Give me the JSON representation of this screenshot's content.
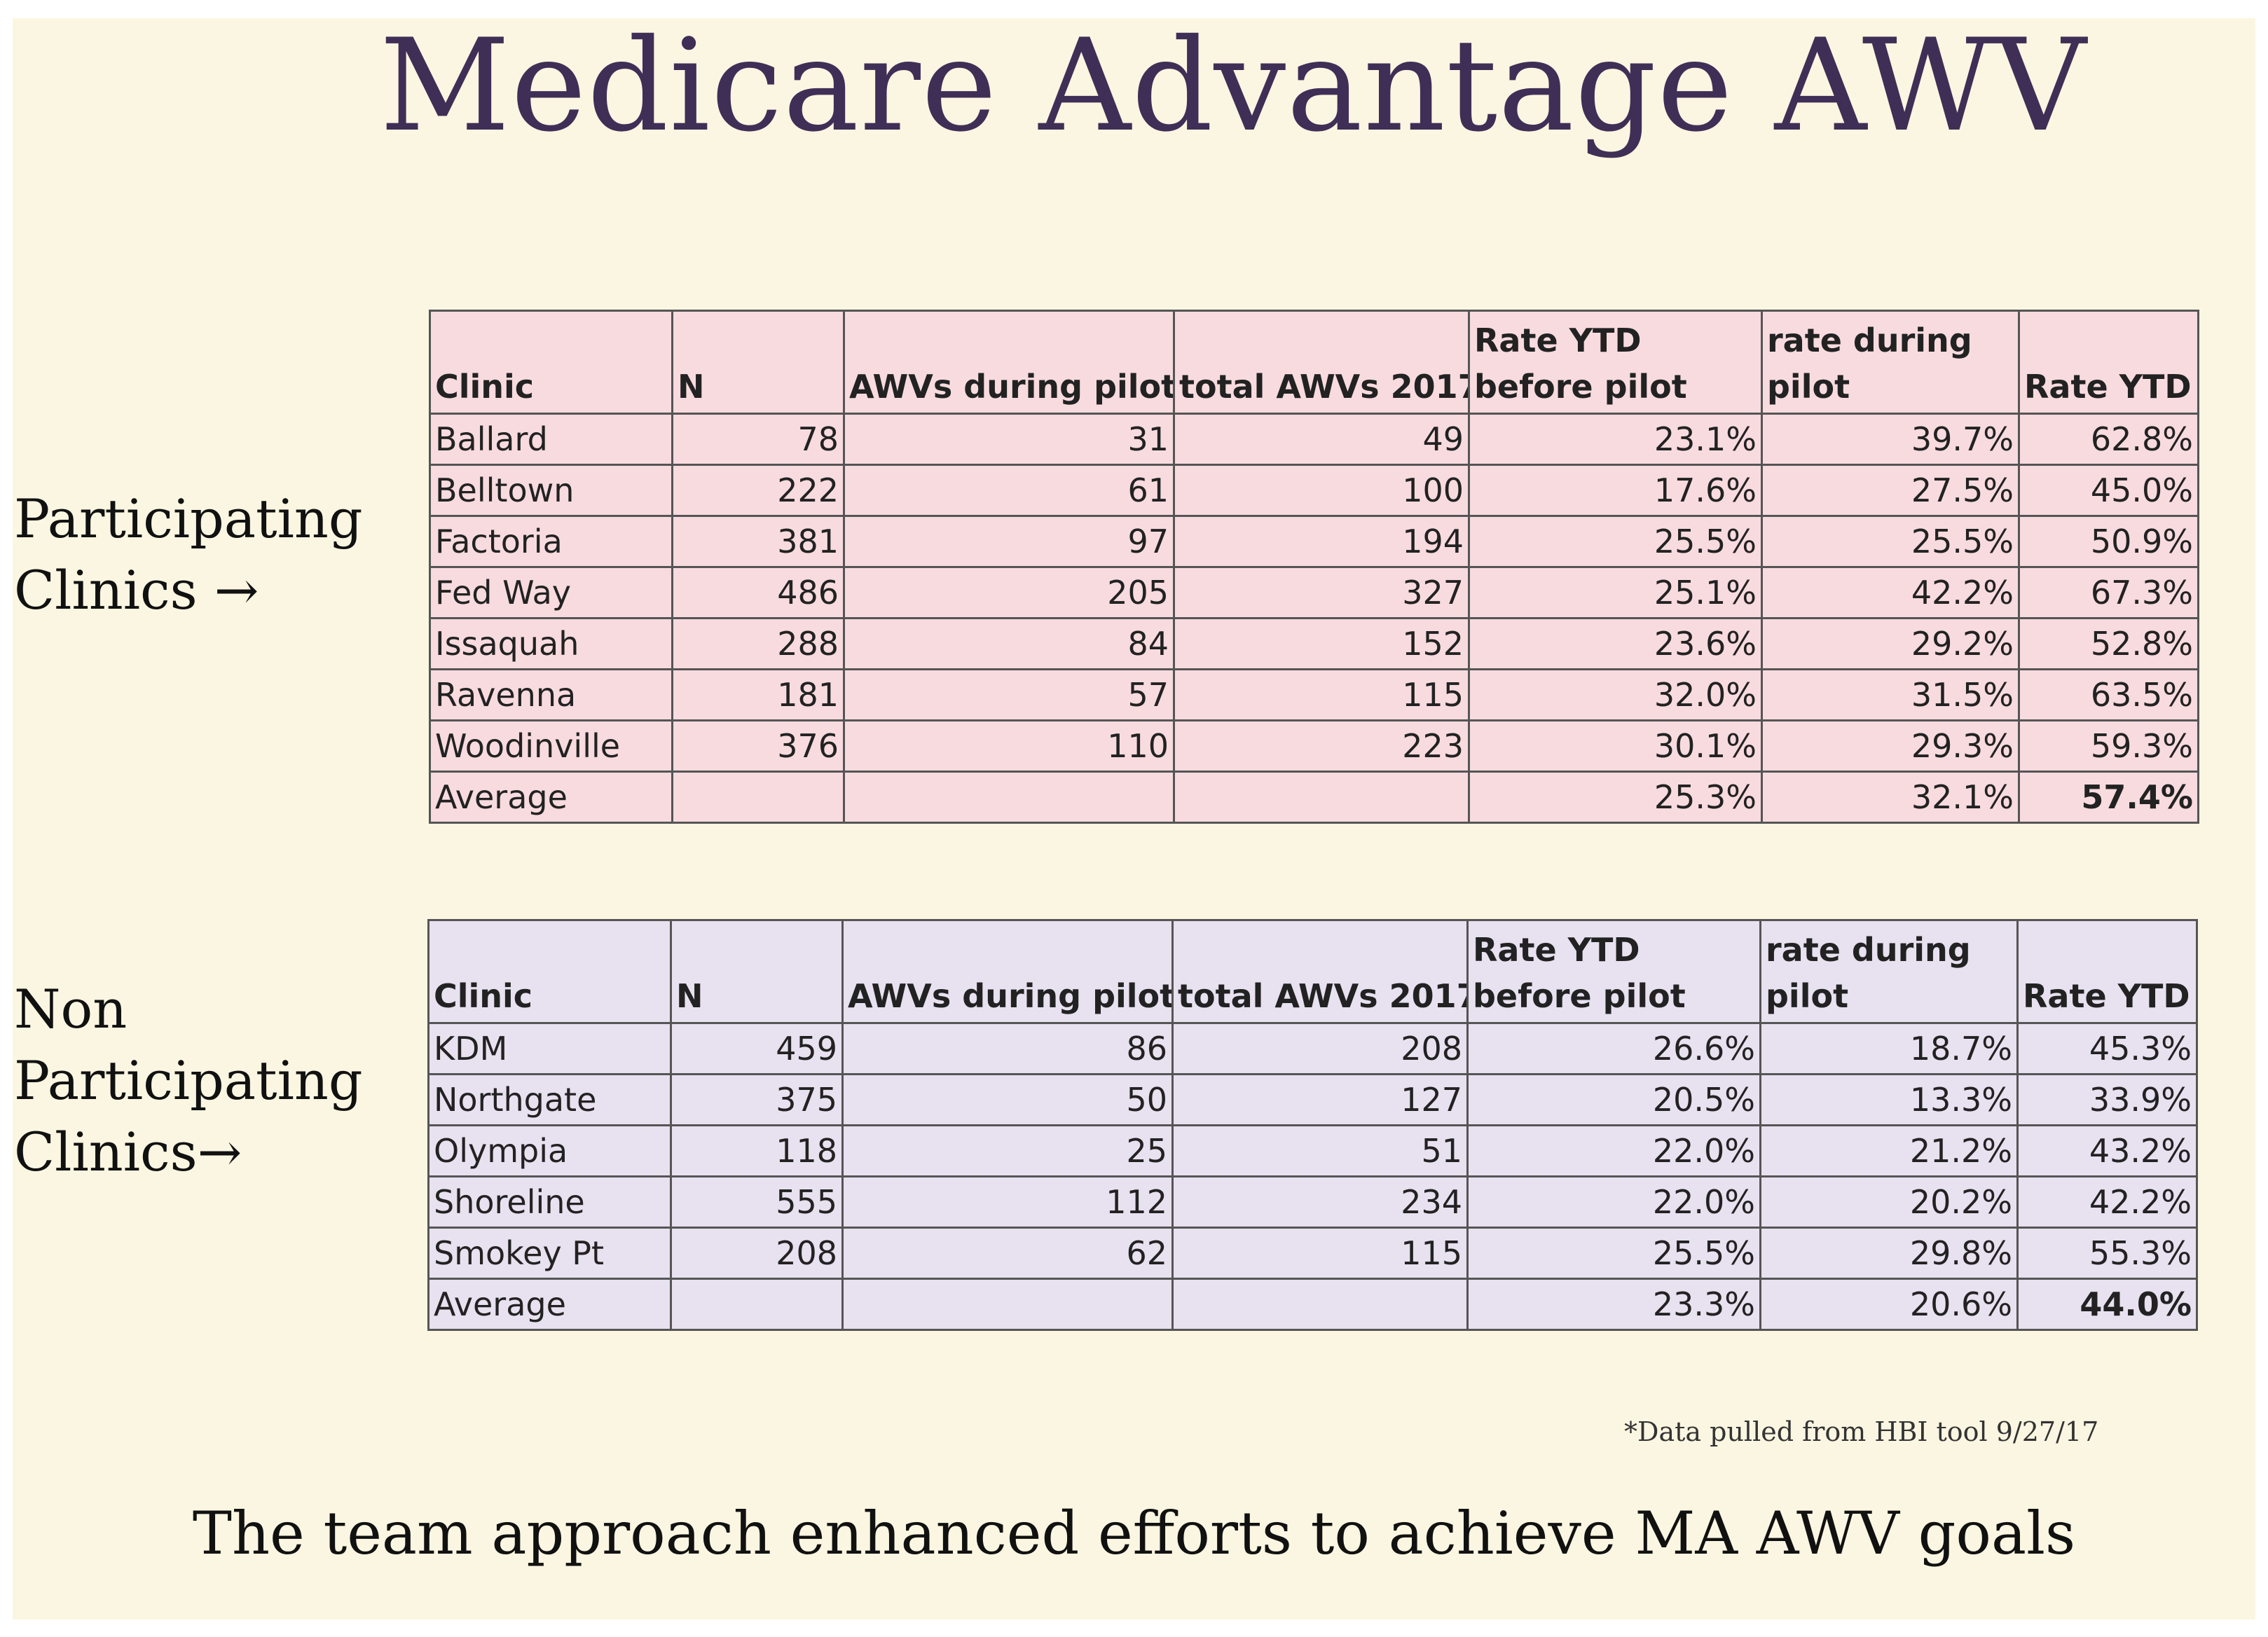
{
  "title": "Medicare Advantage AWV",
  "participating": {
    "label_line1": "Participating",
    "label_line2": "Clinics →",
    "headers": [
      "Clinic",
      "N",
      "AWVs during pilot",
      "total AWVs 2017",
      "Rate YTD before pilot",
      "rate during pilot",
      "Rate YTD"
    ],
    "rows": [
      [
        "Ballard",
        "78",
        "31",
        "49",
        "23.1%",
        "39.7%",
        "62.8%"
      ],
      [
        "Belltown",
        "222",
        "61",
        "100",
        "17.6%",
        "27.5%",
        "45.0%"
      ],
      [
        "Factoria",
        "381",
        "97",
        "194",
        "25.5%",
        "25.5%",
        "50.9%"
      ],
      [
        "Fed Way",
        "486",
        "205",
        "327",
        "25.1%",
        "42.2%",
        "67.3%"
      ],
      [
        "Issaquah",
        "288",
        "84",
        "152",
        "23.6%",
        "29.2%",
        "52.8%"
      ],
      [
        "Ravenna",
        "181",
        "57",
        "115",
        "32.0%",
        "31.5%",
        "63.5%"
      ],
      [
        "Woodinville",
        "376",
        "110",
        "223",
        "30.1%",
        "29.3%",
        "59.3%"
      ]
    ],
    "average": [
      "Average",
      "",
      "",
      "",
      "25.3%",
      "32.1%",
      "57.4%"
    ]
  },
  "nonparticipating": {
    "label_line1": "Non",
    "label_line2": "Participating",
    "label_line3": "Clinics→",
    "headers": [
      "Clinic",
      "N",
      "AWVs during pilot",
      "total AWVs 2017",
      "Rate YTD before pilot",
      "rate during pilot",
      "Rate YTD"
    ],
    "rows": [
      [
        "KDM",
        "459",
        "86",
        "208",
        "26.6%",
        "18.7%",
        "45.3%"
      ],
      [
        "Northgate",
        "375",
        "50",
        "127",
        "20.5%",
        "13.3%",
        "33.9%"
      ],
      [
        "Olympia",
        "118",
        "25",
        "51",
        "22.0%",
        "21.2%",
        "43.2%"
      ],
      [
        "Shoreline",
        "555",
        "112",
        "234",
        "22.0%",
        "20.2%",
        "42.2%"
      ],
      [
        "Smokey Pt",
        "208",
        "62",
        "115",
        "25.5%",
        "29.8%",
        "55.3%"
      ]
    ],
    "average": [
      "Average",
      "",
      "",
      "",
      "23.3%",
      "20.6%",
      "44.0%"
    ]
  },
  "footnote": "*Data pulled from HBI tool 9/27/17",
  "conclusion": "The team approach enhanced efforts to achieve MA AWV goals"
}
